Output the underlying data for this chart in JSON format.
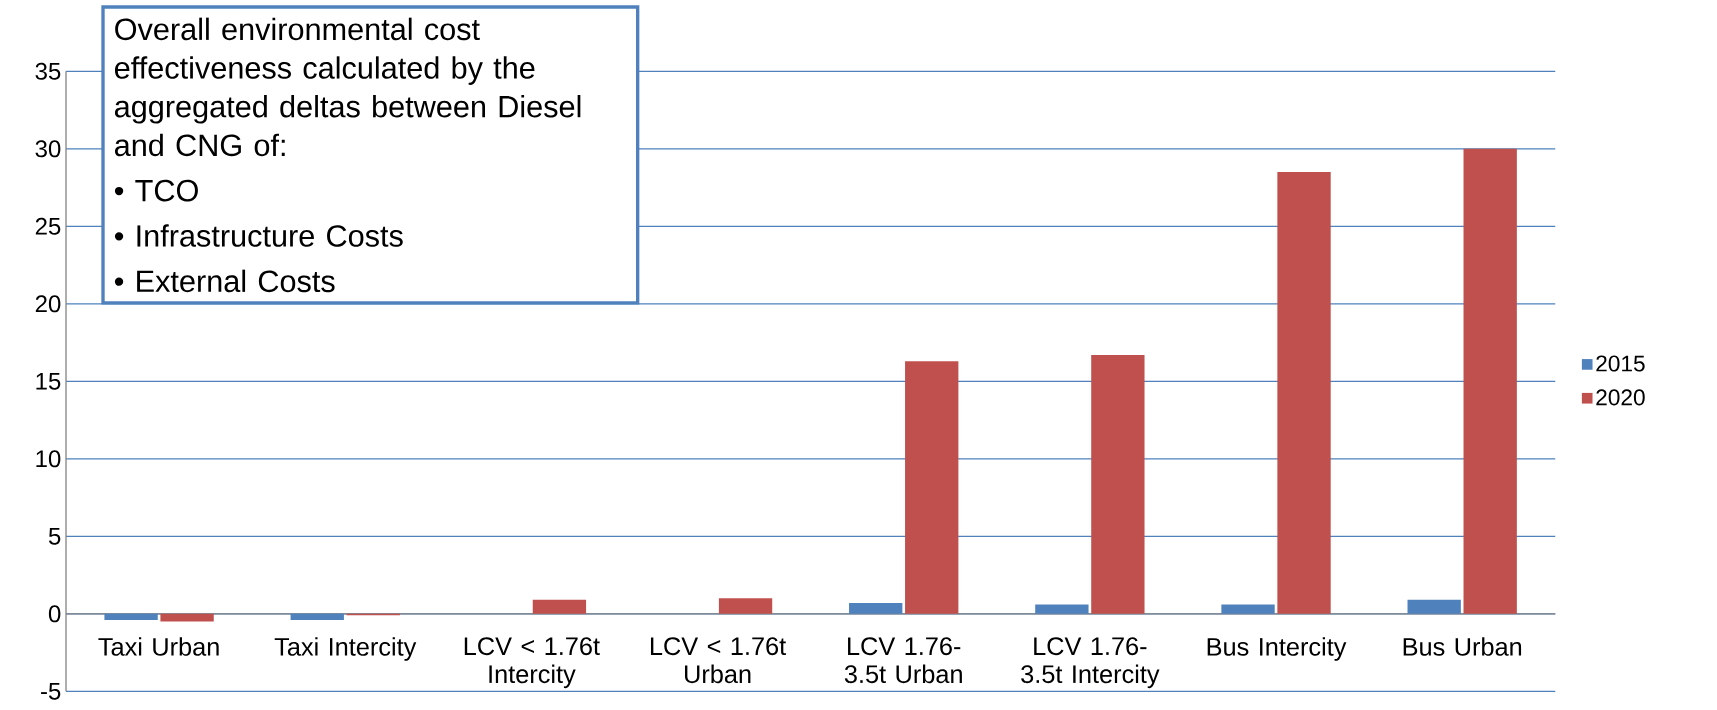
{
  "chart_data": {
    "type": "bar",
    "categories": [
      "Taxi Urban",
      "Taxi Intercity",
      "LCV < 1.76t Intercity",
      "LCV < 1.76t Urban",
      "LCV 1.76-3.5t Urban",
      "LCV 1.76-3.5t Intercity",
      "Bus Intercity",
      "Bus Urban"
    ],
    "series": [
      {
        "name": "2015",
        "color": "#4f81bd",
        "values": [
          -0.4,
          -0.4,
          0,
          0,
          0.7,
          0.6,
          0.6,
          0.9
        ]
      },
      {
        "name": "2020",
        "color": "#c0504d",
        "values": [
          -0.5,
          -0.1,
          0.9,
          1.0,
          16.3,
          16.7,
          28.5,
          30.0
        ]
      }
    ],
    "ylim": [
      -5,
      35
    ],
    "yticks": [
      -5,
      0,
      5,
      10,
      15,
      20,
      25,
      30,
      35
    ],
    "grid": "y",
    "legend": "right",
    "annotations": [
      "Overall environmental cost effectiveness calculated by the aggregated deltas between Diesel and CNG of:",
      "• TCO",
      "• Infrastructure Costs",
      "• External Costs"
    ]
  }
}
